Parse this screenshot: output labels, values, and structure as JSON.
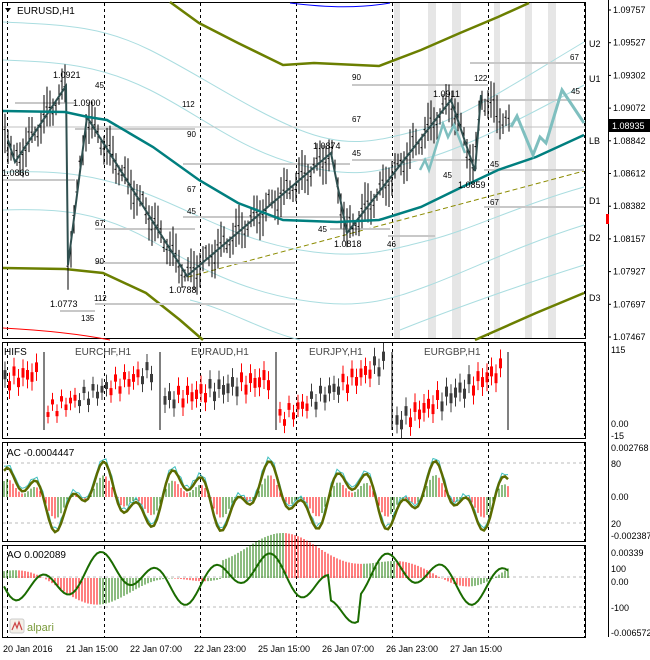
{
  "main": {
    "symbol_title": "EURUSD,H1",
    "current_price": "1.08935",
    "price_axis": [
      "1.09757",
      "1.09527",
      "1.09302",
      "1.09072",
      "1.08842",
      "1.08612",
      "1.08382",
      "1.08157",
      "1.07927",
      "1.07697",
      "1.07467"
    ],
    "band_labels": [
      "U2",
      "U1",
      "LB",
      "D1",
      "D2",
      "D3"
    ],
    "pivot_labels": [
      "1.0921",
      "1.0900",
      "1.0866",
      "1.0773",
      "1.0788",
      "1.0874",
      "1.0818",
      "1.0911",
      "1.0859"
    ],
    "level_labels": [
      "45",
      "112",
      "90",
      "67",
      "45",
      "67",
      "90",
      "112",
      "135",
      "90",
      "67",
      "45",
      "45",
      "46",
      "122",
      "67",
      "45",
      "45",
      "45",
      "67"
    ],
    "colors": {
      "ma": "#007f7f",
      "band": "#6b7f00",
      "forecast": "#7fbfbf",
      "price_tag": "#000000"
    }
  },
  "multi": {
    "title": "HIFS",
    "symbols": [
      "EURCHF,H1",
      "EURAUD,H1",
      "EURJPY,H1",
      "EURGBP,H1"
    ],
    "axis": [
      "115",
      "0.00",
      "-15"
    ]
  },
  "ac": {
    "title": "AC -0.0004447",
    "axis": [
      "0.002768",
      "80",
      "0.00",
      "20",
      "-0.002387"
    ]
  },
  "ao": {
    "title": "AO 0.002089",
    "axis": [
      "0.00339",
      "100",
      "0.00",
      "-100",
      "-0.006572"
    ]
  },
  "time_axis": [
    "20 Jan 2016",
    "21 Jan 15:00",
    "22 Jan 07:00",
    "22 Jan 23:00",
    "25 Jan 15:00",
    "26 Jan 07:00",
    "26 Jan 23:00",
    "27 Jan 15:00"
  ],
  "logo": "alpari"
}
